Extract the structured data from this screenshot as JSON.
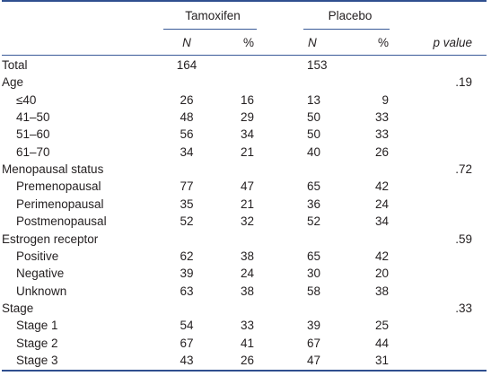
{
  "header": {
    "group1": "Tamoxifen",
    "group2": "Placebo",
    "n": "N",
    "pct": "%",
    "pvalue": "p value"
  },
  "rows": [
    {
      "label": "Total",
      "sub": false,
      "n1": "164",
      "p1": "",
      "n2": "153",
      "p2": "",
      "pv": ""
    },
    {
      "label": "Age",
      "sub": false,
      "n1": "",
      "p1": "",
      "n2": "",
      "p2": "",
      "pv": ".19"
    },
    {
      "label": "≤40",
      "sub": true,
      "n1": "26",
      "p1": "16",
      "n2": "13",
      "p2": "9",
      "pv": ""
    },
    {
      "label": "41–50",
      "sub": true,
      "n1": "48",
      "p1": "29",
      "n2": "50",
      "p2": "33",
      "pv": ""
    },
    {
      "label": "51–60",
      "sub": true,
      "n1": "56",
      "p1": "34",
      "n2": "50",
      "p2": "33",
      "pv": ""
    },
    {
      "label": "61–70",
      "sub": true,
      "n1": "34",
      "p1": "21",
      "n2": "40",
      "p2": "26",
      "pv": ""
    },
    {
      "label": "Menopausal status",
      "sub": false,
      "n1": "",
      "p1": "",
      "n2": "",
      "p2": "",
      "pv": ".72"
    },
    {
      "label": "Premenopausal",
      "sub": true,
      "n1": "77",
      "p1": "47",
      "n2": "65",
      "p2": "42",
      "pv": ""
    },
    {
      "label": "Perimenopausal",
      "sub": true,
      "n1": "35",
      "p1": "21",
      "n2": "36",
      "p2": "24",
      "pv": ""
    },
    {
      "label": "Postmenopausal",
      "sub": true,
      "n1": "52",
      "p1": "32",
      "n2": "52",
      "p2": "34",
      "pv": ""
    },
    {
      "label": "Estrogen receptor",
      "sub": false,
      "n1": "",
      "p1": "",
      "n2": "",
      "p2": "",
      "pv": ".59"
    },
    {
      "label": "Positive",
      "sub": true,
      "n1": "62",
      "p1": "38",
      "n2": "65",
      "p2": "42",
      "pv": ""
    },
    {
      "label": "Negative",
      "sub": true,
      "n1": "39",
      "p1": "24",
      "n2": "30",
      "p2": "20",
      "pv": ""
    },
    {
      "label": "Unknown",
      "sub": true,
      "n1": "63",
      "p1": "38",
      "n2": "58",
      "p2": "38",
      "pv": ""
    },
    {
      "label": "Stage",
      "sub": false,
      "n1": "",
      "p1": "",
      "n2": "",
      "p2": "",
      "pv": ".33"
    },
    {
      "label": "Stage 1",
      "sub": true,
      "n1": "54",
      "p1": "33",
      "n2": "39",
      "p2": "25",
      "pv": ""
    },
    {
      "label": "Stage 2",
      "sub": true,
      "n1": "67",
      "p1": "41",
      "n2": "67",
      "p2": "44",
      "pv": ""
    },
    {
      "label": "Stage 3",
      "sub": true,
      "n1": "43",
      "p1": "26",
      "n2": "47",
      "p2": "31",
      "pv": ""
    }
  ]
}
